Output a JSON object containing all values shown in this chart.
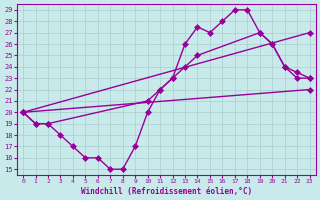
{
  "xlabel": "Windchill (Refroidissement éolien,°C)",
  "xlim": [
    0,
    23
  ],
  "ylim": [
    15,
    29
  ],
  "xticks": [
    0,
    1,
    2,
    3,
    4,
    5,
    6,
    7,
    8,
    9,
    10,
    11,
    12,
    13,
    14,
    15,
    16,
    17,
    18,
    19,
    20,
    21,
    22,
    23
  ],
  "yticks": [
    15,
    16,
    17,
    18,
    19,
    20,
    21,
    22,
    23,
    24,
    25,
    26,
    27,
    28,
    29
  ],
  "bg_color": "#c8eaea",
  "line_color": "#990099",
  "grid_color": "#aacccc",
  "lines": [
    {
      "x": [
        0,
        1,
        2,
        3,
        4,
        5,
        6,
        7,
        8,
        9,
        10,
        11,
        12,
        13,
        14,
        15,
        16,
        17,
        18,
        19,
        20,
        21,
        22,
        23
      ],
      "y": [
        20,
        19,
        19,
        18,
        17,
        16,
        16,
        15,
        15,
        17,
        20,
        22,
        23,
        26,
        27.5,
        27,
        28,
        29,
        29,
        27,
        26,
        24,
        23,
        23
      ]
    },
    {
      "x": [
        0,
        23
      ],
      "y": [
        20,
        22
      ]
    },
    {
      "x": [
        0,
        23
      ],
      "y": [
        20,
        27
      ]
    },
    {
      "x": [
        0,
        1,
        2,
        10,
        11,
        12,
        13,
        14,
        19,
        20,
        21,
        22,
        23
      ],
      "y": [
        20,
        19,
        19,
        21,
        22,
        23,
        24,
        25,
        27,
        26,
        24,
        23.5,
        23
      ]
    }
  ]
}
